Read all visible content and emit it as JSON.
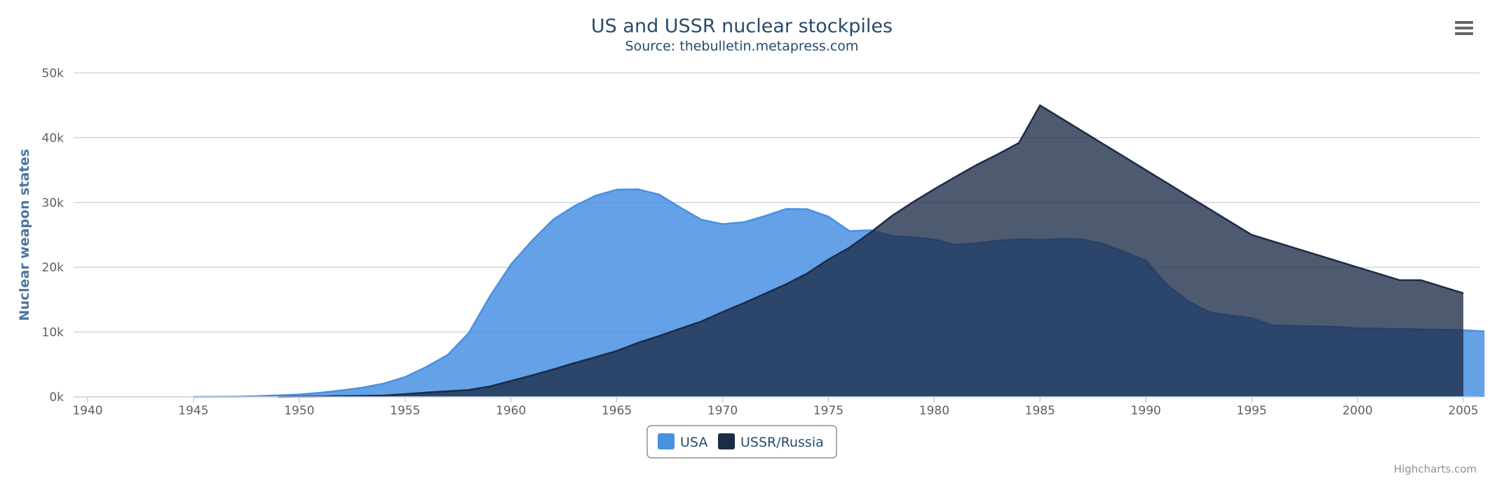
{
  "chart_data": {
    "type": "area",
    "title": "US and USSR nuclear stockpiles",
    "subtitle": "Source: thebulletin.metapress.com",
    "ylabel": "Nuclear weapon states",
    "xlabel": "",
    "xlim": [
      1940,
      2006
    ],
    "ylim": [
      0,
      50000
    ],
    "x_ticks": [
      "1940",
      "1945",
      "1950",
      "1955",
      "1960",
      "1965",
      "1970",
      "1975",
      "1980",
      "1985",
      "1990",
      "1995",
      "2000",
      "2005"
    ],
    "y_ticks": [
      "0k",
      "10k",
      "20k",
      "30k",
      "40k",
      "50k"
    ],
    "grid": true,
    "legend_position": "bottom-center",
    "series": [
      {
        "name": "USA",
        "color": "#4a90e2",
        "points": [
          [
            1945,
            6
          ],
          [
            1946,
            11
          ],
          [
            1947,
            32
          ],
          [
            1948,
            110
          ],
          [
            1949,
            235
          ],
          [
            1950,
            369
          ],
          [
            1951,
            640
          ],
          [
            1952,
            1005
          ],
          [
            1953,
            1436
          ],
          [
            1954,
            2063
          ],
          [
            1955,
            3057
          ],
          [
            1956,
            4618
          ],
          [
            1957,
            6444
          ],
          [
            1958,
            9822
          ],
          [
            1959,
            15468
          ],
          [
            1960,
            20434
          ],
          [
            1961,
            24126
          ],
          [
            1962,
            27387
          ],
          [
            1963,
            29459
          ],
          [
            1964,
            31056
          ],
          [
            1965,
            31982
          ],
          [
            1966,
            32040
          ],
          [
            1967,
            31233
          ],
          [
            1968,
            29224
          ],
          [
            1969,
            27342
          ],
          [
            1970,
            26662
          ],
          [
            1971,
            26956
          ],
          [
            1972,
            27912
          ],
          [
            1973,
            28999
          ],
          [
            1974,
            28965
          ],
          [
            1975,
            27826
          ],
          [
            1976,
            25579
          ],
          [
            1977,
            25722
          ],
          [
            1978,
            24826
          ],
          [
            1979,
            24605
          ],
          [
            1980,
            24304
          ],
          [
            1981,
            23464
          ],
          [
            1982,
            23708
          ],
          [
            1983,
            24099
          ],
          [
            1984,
            24357
          ],
          [
            1985,
            24237
          ],
          [
            1986,
            24401
          ],
          [
            1987,
            24344
          ],
          [
            1988,
            23586
          ],
          [
            1989,
            22380
          ],
          [
            1990,
            21004
          ],
          [
            1991,
            17287
          ],
          [
            1992,
            14747
          ],
          [
            1993,
            13076
          ],
          [
            1994,
            12555
          ],
          [
            1995,
            12144
          ],
          [
            1996,
            11009
          ],
          [
            1997,
            10950
          ],
          [
            1998,
            10871
          ],
          [
            1999,
            10824
          ],
          [
            2000,
            10577
          ],
          [
            2001,
            10527
          ],
          [
            2002,
            10475
          ],
          [
            2003,
            10421
          ],
          [
            2004,
            10358
          ],
          [
            2005,
            10295
          ],
          [
            2006,
            10104
          ]
        ]
      },
      {
        "name": "USSR/Russia",
        "color": "#1c2b47",
        "points": [
          [
            1949,
            5
          ],
          [
            1950,
            25
          ],
          [
            1951,
            50
          ],
          [
            1952,
            120
          ],
          [
            1953,
            150
          ],
          [
            1954,
            200
          ],
          [
            1955,
            426
          ],
          [
            1956,
            660
          ],
          [
            1957,
            869
          ],
          [
            1958,
            1060
          ],
          [
            1959,
            1605
          ],
          [
            1960,
            2471
          ],
          [
            1961,
            3322
          ],
          [
            1962,
            4238
          ],
          [
            1963,
            5221
          ],
          [
            1964,
            6129
          ],
          [
            1965,
            7089
          ],
          [
            1966,
            8339
          ],
          [
            1967,
            9399
          ],
          [
            1968,
            10538
          ],
          [
            1969,
            11643
          ],
          [
            1970,
            13092
          ],
          [
            1971,
            14478
          ],
          [
            1972,
            15915
          ],
          [
            1973,
            17385
          ],
          [
            1974,
            19055
          ],
          [
            1975,
            21205
          ],
          [
            1976,
            23044
          ],
          [
            1977,
            25393
          ],
          [
            1978,
            27935
          ],
          [
            1979,
            30062
          ],
          [
            1980,
            32049
          ],
          [
            1981,
            33952
          ],
          [
            1982,
            35804
          ],
          [
            1983,
            37431
          ],
          [
            1984,
            39197
          ],
          [
            1985,
            45000
          ],
          [
            1986,
            43000
          ],
          [
            1987,
            41000
          ],
          [
            1988,
            39000
          ],
          [
            1989,
            37000
          ],
          [
            1990,
            35000
          ],
          [
            1991,
            33000
          ],
          [
            1992,
            31000
          ],
          [
            1993,
            29000
          ],
          [
            1994,
            27000
          ],
          [
            1995,
            25000
          ],
          [
            1996,
            24000
          ],
          [
            1997,
            23000
          ],
          [
            1998,
            22000
          ],
          [
            1999,
            21000
          ],
          [
            2000,
            20000
          ],
          [
            2001,
            19000
          ],
          [
            2002,
            18000
          ],
          [
            2003,
            18000
          ],
          [
            2004,
            17000
          ],
          [
            2005,
            16000
          ]
        ]
      }
    ]
  },
  "menu": {
    "icon": "hamburger-menu-icon"
  },
  "credits": "Highcharts.com"
}
